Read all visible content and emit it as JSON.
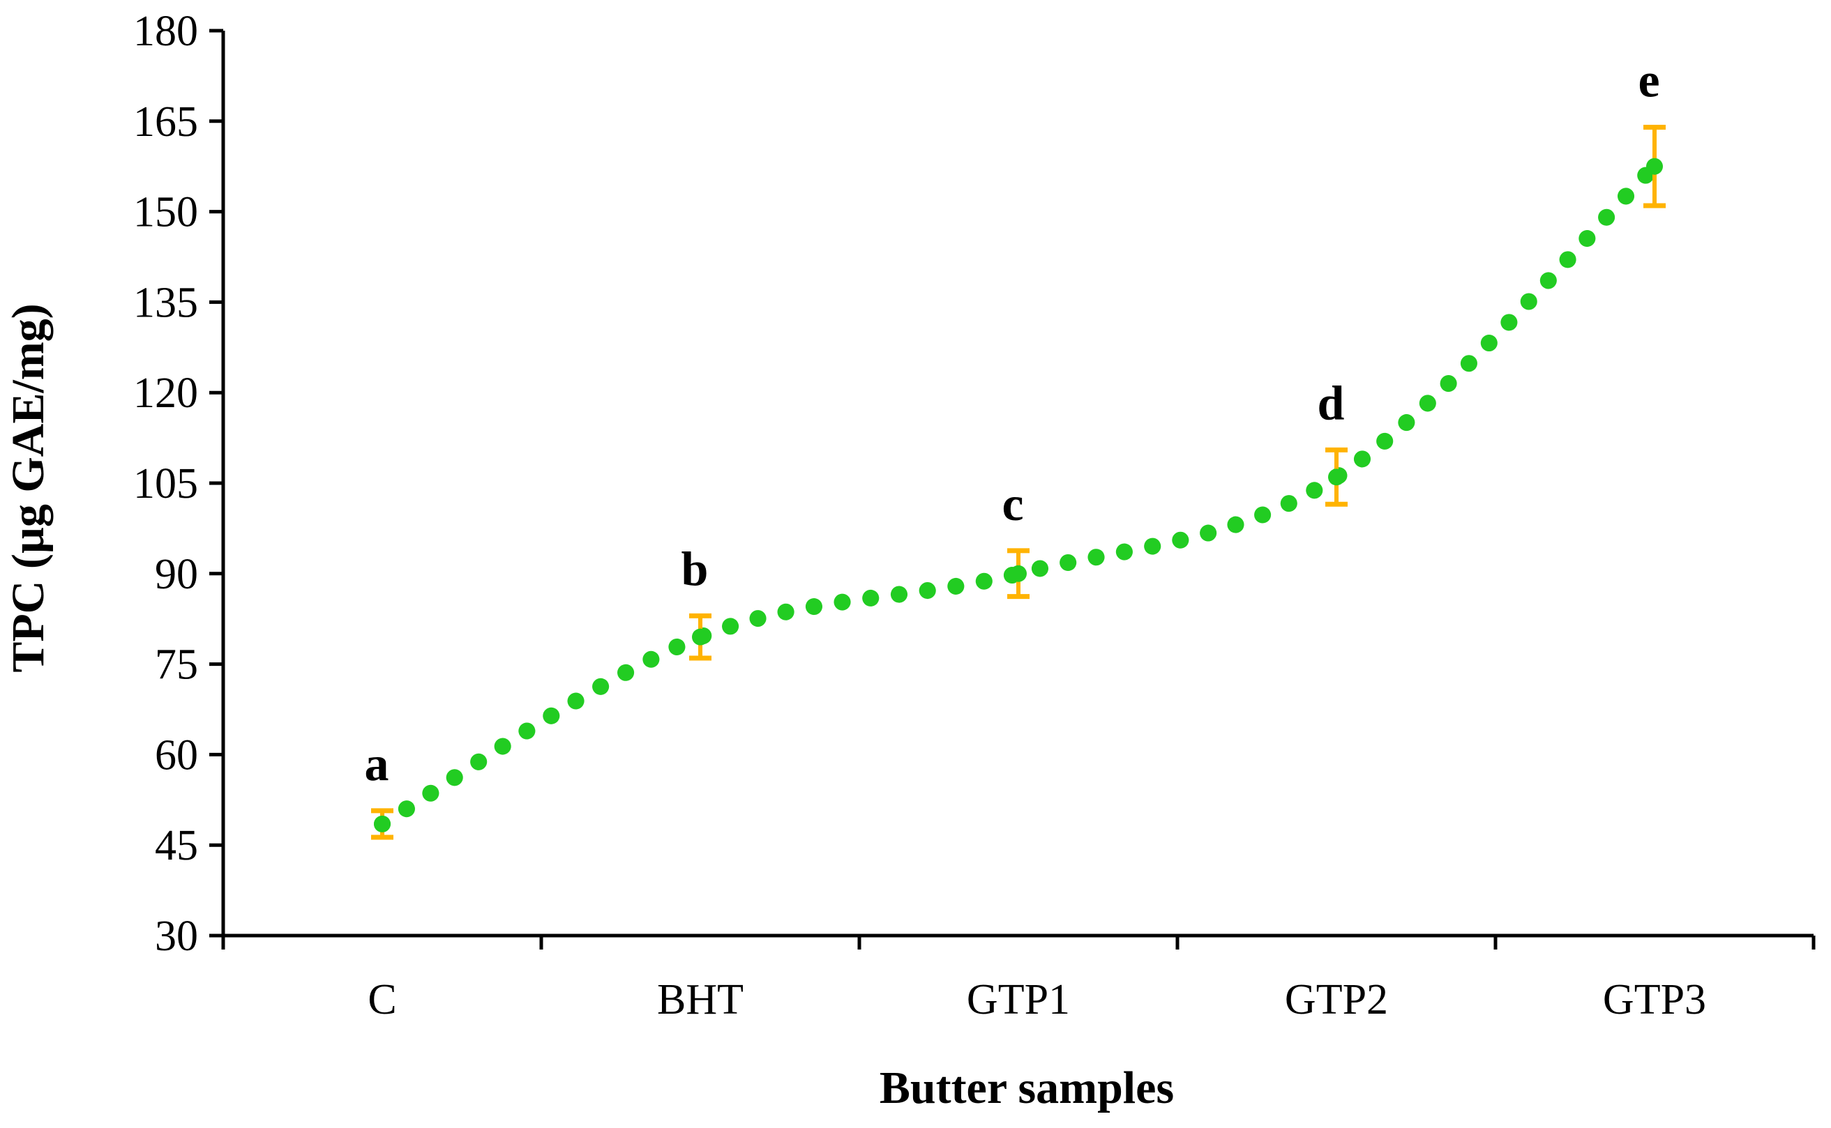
{
  "chart_data": {
    "type": "line",
    "title": "",
    "xlabel": "Butter samples",
    "ylabel": "TPC (µg GAE/mg)",
    "categories": [
      "C",
      "BHT",
      "GTP1",
      "GTP2",
      "GTP3"
    ],
    "series": [
      {
        "name": "TPC",
        "values": [
          48.5,
          79.5,
          90,
          106,
          157.5
        ],
        "errors": [
          2.2,
          3.5,
          3.8,
          4.5,
          6.5
        ],
        "labels": [
          "a",
          "b",
          "c",
          "d",
          "e"
        ]
      }
    ],
    "ylim": [
      30,
      180
    ],
    "yticks": [
      30,
      45,
      60,
      75,
      90,
      105,
      120,
      135,
      150,
      165,
      180
    ],
    "grid": false,
    "legend": "none",
    "colors": {
      "line": "#22cc22",
      "error_bar": "#ffb300",
      "axis": "#000000"
    }
  }
}
